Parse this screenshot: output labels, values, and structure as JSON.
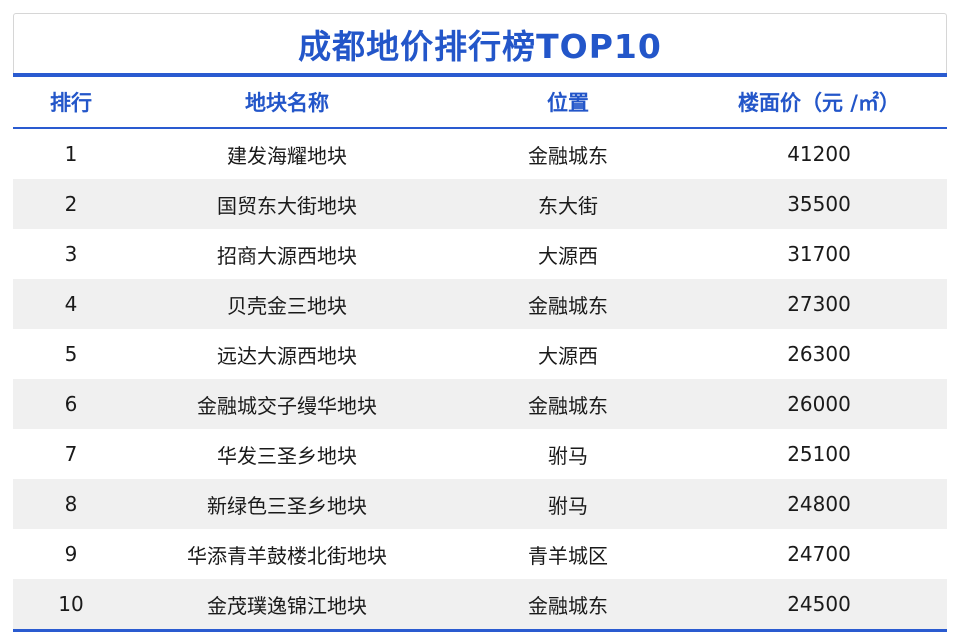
{
  "title": "成都地价排行榜TOP10",
  "headers": {
    "rank": "排行",
    "name": "地块名称",
    "location": "位置",
    "price": "楼面价（元 /㎡）"
  },
  "rows": [
    {
      "rank": "1",
      "name": "建发海耀地块",
      "location": "金融城东",
      "price": "41200"
    },
    {
      "rank": "2",
      "name": "国贸东大街地块",
      "location": "东大街",
      "price": "35500"
    },
    {
      "rank": "3",
      "name": "招商大源西地块",
      "location": "大源西",
      "price": "31700"
    },
    {
      "rank": "4",
      "name": "贝壳金三地块",
      "location": "金融城东",
      "price": "27300"
    },
    {
      "rank": "5",
      "name": "远达大源西地块",
      "location": "大源西",
      "price": "26300"
    },
    {
      "rank": "6",
      "name": "金融城交子缦华地块",
      "location": "金融城东",
      "price": "26000"
    },
    {
      "rank": "7",
      "name": "华发三圣乡地块",
      "location": "驸马",
      "price": "25100"
    },
    {
      "rank": "8",
      "name": "新绿色三圣乡地块",
      "location": "驸马",
      "price": "24800"
    },
    {
      "rank": "9",
      "name": "华添青羊鼓楼北街地块",
      "location": "青羊城区",
      "price": "24700"
    },
    {
      "rank": "10",
      "name": "金茂璞逸锦江地块",
      "location": "金融城东",
      "price": "24500"
    }
  ],
  "colors": {
    "accent": "#2356c9",
    "row_alt": "#f0f0f0"
  }
}
